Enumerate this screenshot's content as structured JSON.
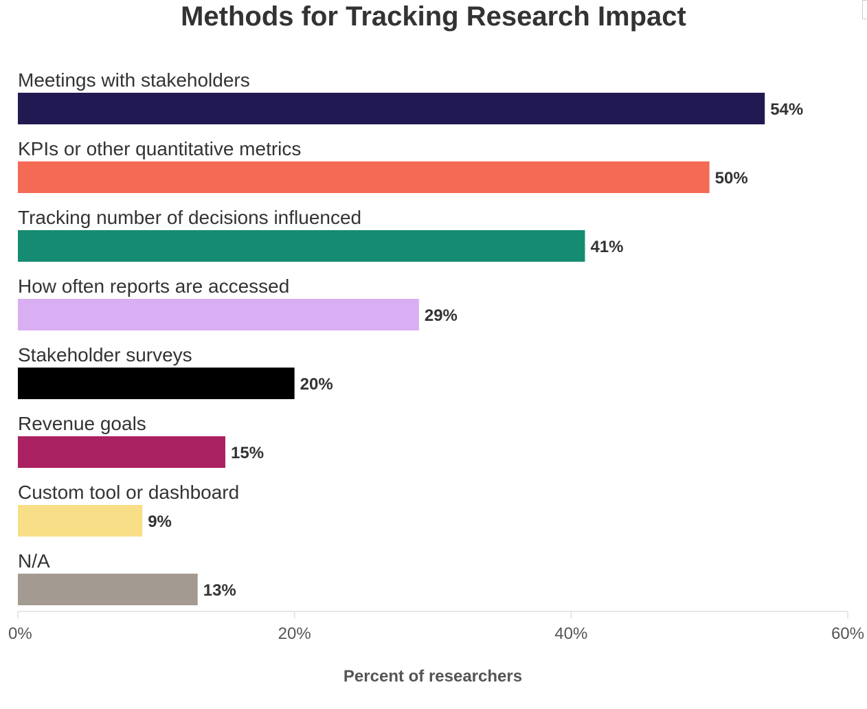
{
  "chart_data": {
    "type": "bar",
    "orientation": "horizontal",
    "title": "Methods for Tracking Research Impact",
    "xlabel": "Percent of researchers",
    "ylabel": "",
    "xlim": [
      0,
      60
    ],
    "ticks": [
      0,
      20,
      40,
      60
    ],
    "tick_labels": [
      "0%",
      "20%",
      "40%",
      "60%"
    ],
    "grid": false,
    "legend": "none",
    "categories": [
      "Meetings with stakeholders",
      "KPIs or other quantitative metrics",
      "Tracking number of decisions influenced",
      "How often reports are accessed",
      "Stakeholder surveys",
      "Revenue goals",
      "Custom tool or dashboard",
      "N/A"
    ],
    "values": [
      54,
      50,
      41,
      29,
      20,
      15,
      9,
      13
    ],
    "value_labels": [
      "54%",
      "50%",
      "41%",
      "29%",
      "20%",
      "15%",
      "9%",
      "13%"
    ],
    "colors": [
      "#211a52",
      "#f56a55",
      "#158c72",
      "#d9aef2",
      "#000000",
      "#ab2263",
      "#f7de87",
      "#a39a92"
    ]
  }
}
